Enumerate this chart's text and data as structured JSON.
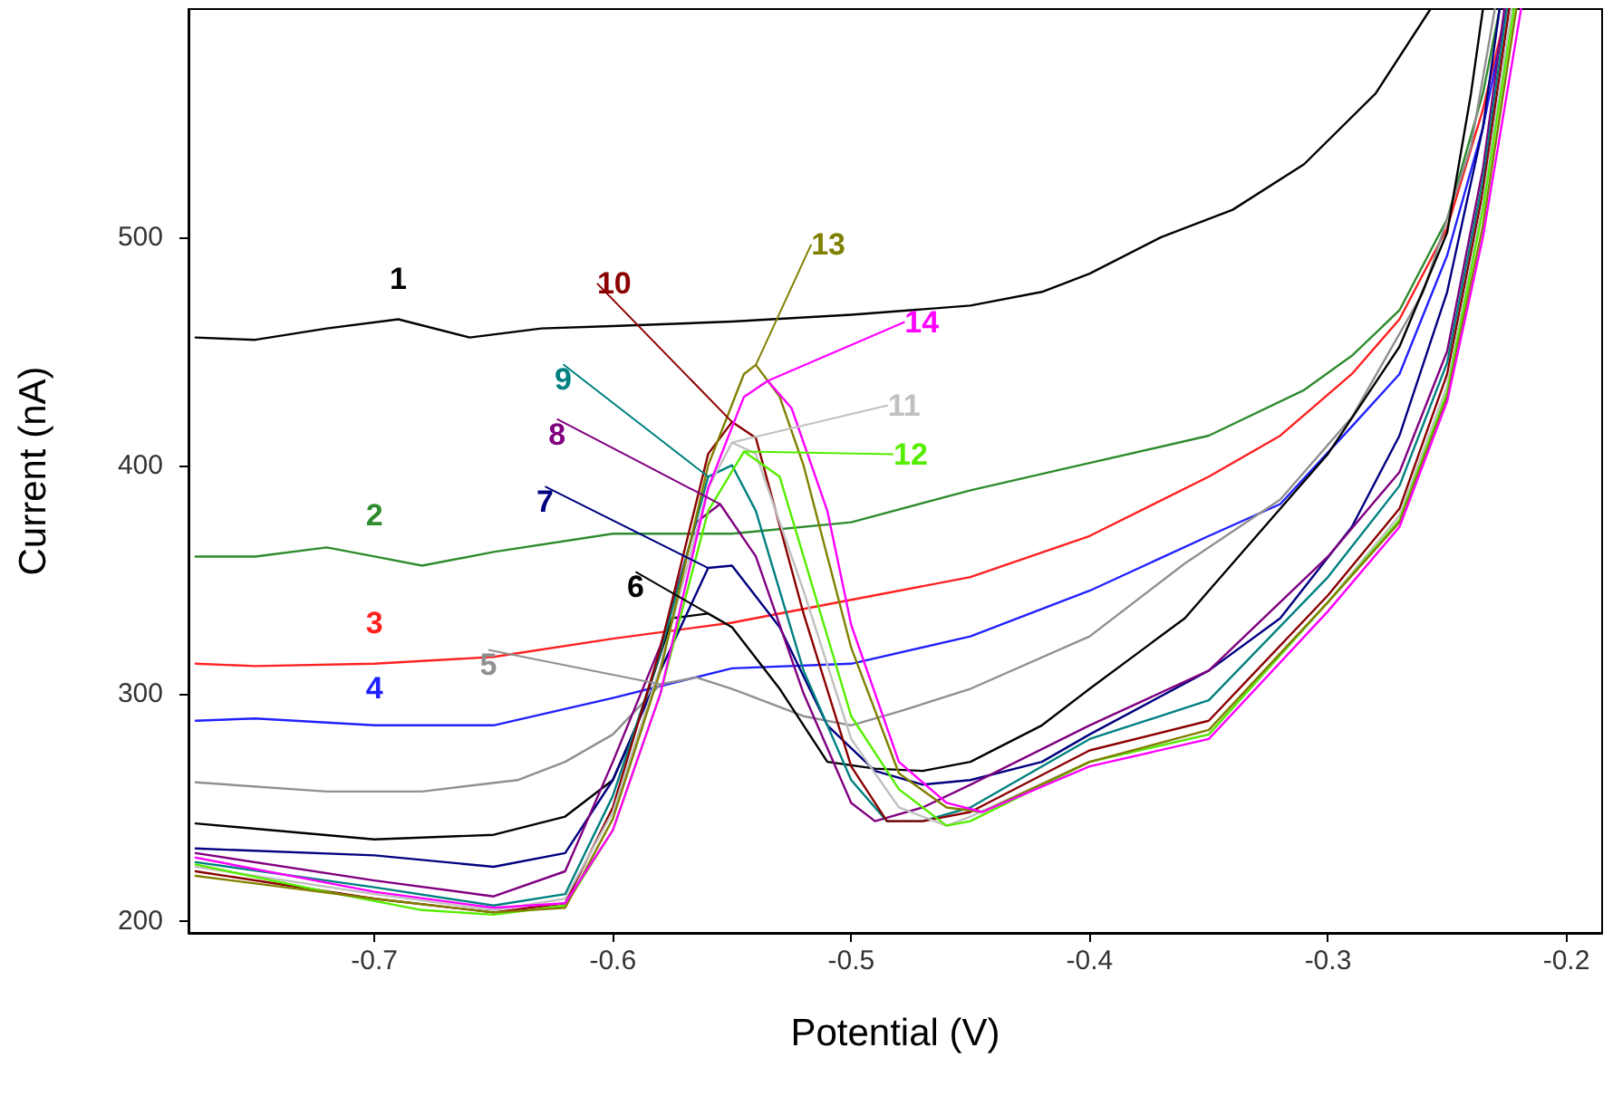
{
  "chart_data": {
    "type": "line",
    "xlabel": "Potential (V)",
    "ylabel": "Current (nA)",
    "xlim": [
      -0.778,
      -0.185
    ],
    "xticks": [
      -0.7,
      -0.6,
      -0.5,
      -0.4,
      -0.3,
      -0.2
    ],
    "ylim": [
      195,
      600
    ],
    "yticks": [
      200,
      300,
      400,
      500
    ],
    "grid": false,
    "marker": "none",
    "series": [
      {
        "name": "1",
        "color": "#000000",
        "x": [
          -0.775,
          -0.75,
          -0.72,
          -0.69,
          -0.66,
          -0.63,
          -0.6,
          -0.55,
          -0.5,
          -0.45,
          -0.42,
          -0.4,
          -0.37,
          -0.34,
          -0.31,
          -0.28,
          -0.257
        ],
        "values": [
          456,
          455,
          460,
          464,
          456,
          460,
          461,
          463,
          466,
          470,
          476,
          484,
          500,
          512,
          532,
          563,
          600
        ]
      },
      {
        "name": "2",
        "color": "#2e8b2e",
        "x": [
          -0.775,
          -0.75,
          -0.72,
          -0.7,
          -0.68,
          -0.65,
          -0.6,
          -0.55,
          -0.5,
          -0.45,
          -0.4,
          -0.35,
          -0.31,
          -0.29,
          -0.27,
          -0.25,
          -0.235,
          -0.228
        ],
        "values": [
          360,
          360,
          364,
          360,
          356,
          362,
          370,
          370,
          375,
          389,
          401,
          413,
          433,
          448,
          468,
          508,
          563,
          600
        ]
      },
      {
        "name": "3",
        "color": "#ff2020",
        "x": [
          -0.775,
          -0.75,
          -0.7,
          -0.65,
          -0.6,
          -0.55,
          -0.5,
          -0.45,
          -0.4,
          -0.35,
          -0.32,
          -0.29,
          -0.27,
          -0.25,
          -0.235,
          -0.225
        ],
        "values": [
          313,
          312,
          313,
          316,
          324,
          331,
          341,
          351,
          369,
          395,
          413,
          440,
          464,
          504,
          556,
          600
        ]
      },
      {
        "name": "4",
        "color": "#2020ff",
        "x": [
          -0.775,
          -0.75,
          -0.7,
          -0.65,
          -0.6,
          -0.55,
          -0.5,
          -0.45,
          -0.4,
          -0.35,
          -0.32,
          -0.29,
          -0.27,
          -0.25,
          -0.235,
          -0.225
        ],
        "values": [
          288,
          289,
          286,
          286,
          298,
          311,
          313,
          325,
          345,
          369,
          383,
          417,
          440,
          492,
          548,
          600
        ]
      },
      {
        "name": "5",
        "color": "#909090",
        "x": [
          -0.775,
          -0.72,
          -0.68,
          -0.64,
          -0.62,
          -0.6,
          -0.58,
          -0.565,
          -0.55,
          -0.52,
          -0.5,
          -0.48,
          -0.45,
          -0.4,
          -0.36,
          -0.32,
          -0.29,
          -0.26,
          -0.24,
          -0.23
        ],
        "values": [
          261,
          257,
          257,
          262,
          270,
          282,
          304,
          307,
          302,
          290,
          286,
          292,
          302,
          325,
          357,
          385,
          421,
          476,
          540,
          600
        ]
      },
      {
        "name": "6",
        "color": "#000000",
        "x": [
          -0.775,
          -0.7,
          -0.65,
          -0.62,
          -0.6,
          -0.59,
          -0.575,
          -0.56,
          -0.55,
          -0.53,
          -0.51,
          -0.49,
          -0.47,
          -0.45,
          -0.42,
          -0.4,
          -0.36,
          -0.34,
          -0.3,
          -0.27,
          -0.25,
          -0.24,
          -0.235
        ],
        "values": [
          243,
          236,
          238,
          246,
          262,
          286,
          333,
          335,
          329,
          302,
          270,
          267,
          266,
          270,
          286,
          302,
          333,
          357,
          405,
          452,
          502,
          563,
          600
        ]
      },
      {
        "name": "7",
        "color": "#000080",
        "x": [
          -0.775,
          -0.7,
          -0.65,
          -0.62,
          -0.6,
          -0.58,
          -0.56,
          -0.55,
          -0.53,
          -0.51,
          -0.49,
          -0.47,
          -0.45,
          -0.42,
          -0.4,
          -0.35,
          -0.32,
          -0.29,
          -0.27,
          -0.25,
          -0.235,
          -0.228
        ],
        "values": [
          232,
          229,
          224,
          230,
          262,
          310,
          355,
          356,
          329,
          286,
          266,
          260,
          262,
          270,
          282,
          310,
          333,
          373,
          413,
          476,
          548,
          600
        ]
      },
      {
        "name": "8",
        "color": "#800080",
        "x": [
          -0.775,
          -0.7,
          -0.65,
          -0.62,
          -0.6,
          -0.58,
          -0.565,
          -0.555,
          -0.54,
          -0.52,
          -0.5,
          -0.49,
          -0.47,
          -0.45,
          -0.4,
          -0.35,
          -0.3,
          -0.27,
          -0.25,
          -0.235,
          -0.226
        ],
        "values": [
          230,
          218,
          211,
          222,
          270,
          321,
          375,
          383,
          360,
          300,
          252,
          244,
          250,
          260,
          286,
          310,
          360,
          397,
          450,
          530,
          600
        ]
      },
      {
        "name": "9",
        "color": "#008080",
        "x": [
          -0.775,
          -0.7,
          -0.65,
          -0.62,
          -0.6,
          -0.58,
          -0.56,
          -0.55,
          -0.54,
          -0.52,
          -0.5,
          -0.485,
          -0.47,
          -0.45,
          -0.4,
          -0.35,
          -0.3,
          -0.27,
          -0.25,
          -0.235,
          -0.225
        ],
        "values": [
          226,
          215,
          207,
          212,
          255,
          318,
          395,
          400,
          380,
          310,
          262,
          244,
          244,
          250,
          280,
          297,
          351,
          391,
          445,
          525,
          600
        ]
      },
      {
        "name": "10",
        "color": "#8b0000",
        "x": [
          -0.775,
          -0.7,
          -0.65,
          -0.62,
          -0.6,
          -0.58,
          -0.56,
          -0.55,
          -0.54,
          -0.52,
          -0.5,
          -0.485,
          -0.47,
          -0.45,
          -0.4,
          -0.35,
          -0.3,
          -0.27,
          -0.25,
          -0.235,
          -0.224
        ],
        "values": [
          222,
          210,
          204,
          208,
          250,
          320,
          405,
          419,
          412,
          335,
          268,
          244,
          244,
          248,
          275,
          288,
          343,
          381,
          440,
          520,
          600
        ]
      },
      {
        "name": "11",
        "color": "#c0c0c0",
        "x": [
          -0.775,
          -0.7,
          -0.65,
          -0.62,
          -0.6,
          -0.58,
          -0.56,
          -0.55,
          -0.54,
          -0.52,
          -0.5,
          -0.48,
          -0.46,
          -0.45,
          -0.4,
          -0.35,
          -0.3,
          -0.27,
          -0.25,
          -0.235,
          -0.223
        ],
        "values": [
          224,
          212,
          205,
          210,
          248,
          312,
          390,
          410,
          405,
          345,
          280,
          250,
          242,
          246,
          270,
          282,
          340,
          378,
          435,
          515,
          600
        ]
      },
      {
        "name": "12",
        "color": "#55ee00",
        "x": [
          -0.775,
          -0.72,
          -0.68,
          -0.65,
          -0.62,
          -0.6,
          -0.58,
          -0.56,
          -0.545,
          -0.53,
          -0.52,
          -0.5,
          -0.48,
          -0.46,
          -0.45,
          -0.4,
          -0.35,
          -0.3,
          -0.27,
          -0.25,
          -0.235,
          -0.222
        ],
        "values": [
          225,
          213,
          205,
          203,
          207,
          240,
          300,
          380,
          406,
          395,
          360,
          290,
          258,
          242,
          244,
          270,
          282,
          340,
          376,
          432,
          512,
          600
        ]
      },
      {
        "name": "13",
        "color": "#808000",
        "x": [
          -0.775,
          -0.7,
          -0.65,
          -0.62,
          -0.6,
          -0.58,
          -0.56,
          -0.545,
          -0.54,
          -0.53,
          -0.52,
          -0.5,
          -0.48,
          -0.46,
          -0.445,
          -0.4,
          -0.35,
          -0.3,
          -0.27,
          -0.25,
          -0.235,
          -0.221
        ],
        "values": [
          220,
          210,
          204,
          206,
          245,
          310,
          400,
          440,
          444,
          430,
          400,
          320,
          265,
          250,
          248,
          270,
          284,
          340,
          375,
          430,
          505,
          600
        ]
      },
      {
        "name": "14",
        "color": "#ff00ff",
        "x": [
          -0.775,
          -0.7,
          -0.65,
          -0.62,
          -0.6,
          -0.58,
          -0.56,
          -0.545,
          -0.535,
          -0.525,
          -0.51,
          -0.5,
          -0.48,
          -0.46,
          -0.445,
          -0.4,
          -0.35,
          -0.3,
          -0.27,
          -0.25,
          -0.235,
          -0.219
        ],
        "values": [
          228,
          213,
          206,
          208,
          240,
          300,
          390,
          430,
          437,
          425,
          380,
          330,
          270,
          252,
          248,
          268,
          280,
          336,
          373,
          428,
          500,
          600
        ]
      }
    ]
  }
}
